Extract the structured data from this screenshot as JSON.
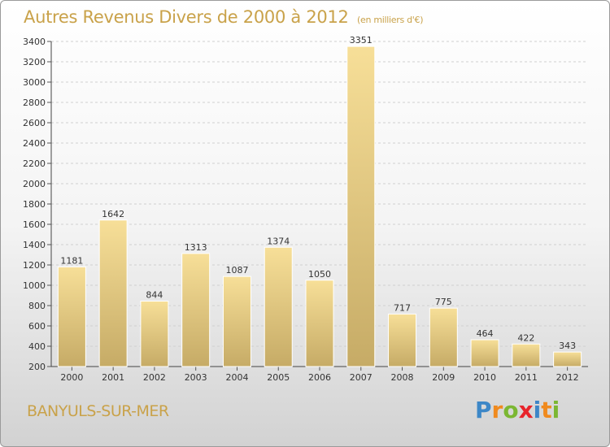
{
  "chart_data": {
    "type": "bar",
    "title": "Autres Revenus Divers de 2000 à 2012",
    "subtitle": "(en milliers d'€)",
    "categories": [
      "2000",
      "2001",
      "2002",
      "2003",
      "2004",
      "2005",
      "2006",
      "2007",
      "2008",
      "2009",
      "2010",
      "2011",
      "2012"
    ],
    "values": [
      1181,
      1642,
      844,
      1313,
      1087,
      1374,
      1050,
      3351,
      717,
      775,
      464,
      422,
      343
    ],
    "ylim": [
      200,
      3400
    ],
    "yticks": [
      200,
      400,
      600,
      800,
      1000,
      1200,
      1400,
      1600,
      1800,
      2000,
      2200,
      2400,
      2600,
      2800,
      3000,
      3200,
      3400
    ],
    "grid": true,
    "xlabel": "",
    "ylabel": ""
  },
  "footer": {
    "town": "BANYULS-SUR-MER",
    "logo_letters": [
      "P",
      "r",
      "o",
      "x",
      "i",
      "t",
      "i"
    ],
    "logo_colors": [
      "#3d87c7",
      "#f08a1e",
      "#7bb732",
      "#e8242b",
      "#3d87c7",
      "#f08a1e",
      "#7bb732"
    ]
  },
  "colors": {
    "title": "#c9a24a",
    "bar_light": "#f7df98",
    "bar_dark": "#c6ab66",
    "grid": "#d0d0d0"
  }
}
